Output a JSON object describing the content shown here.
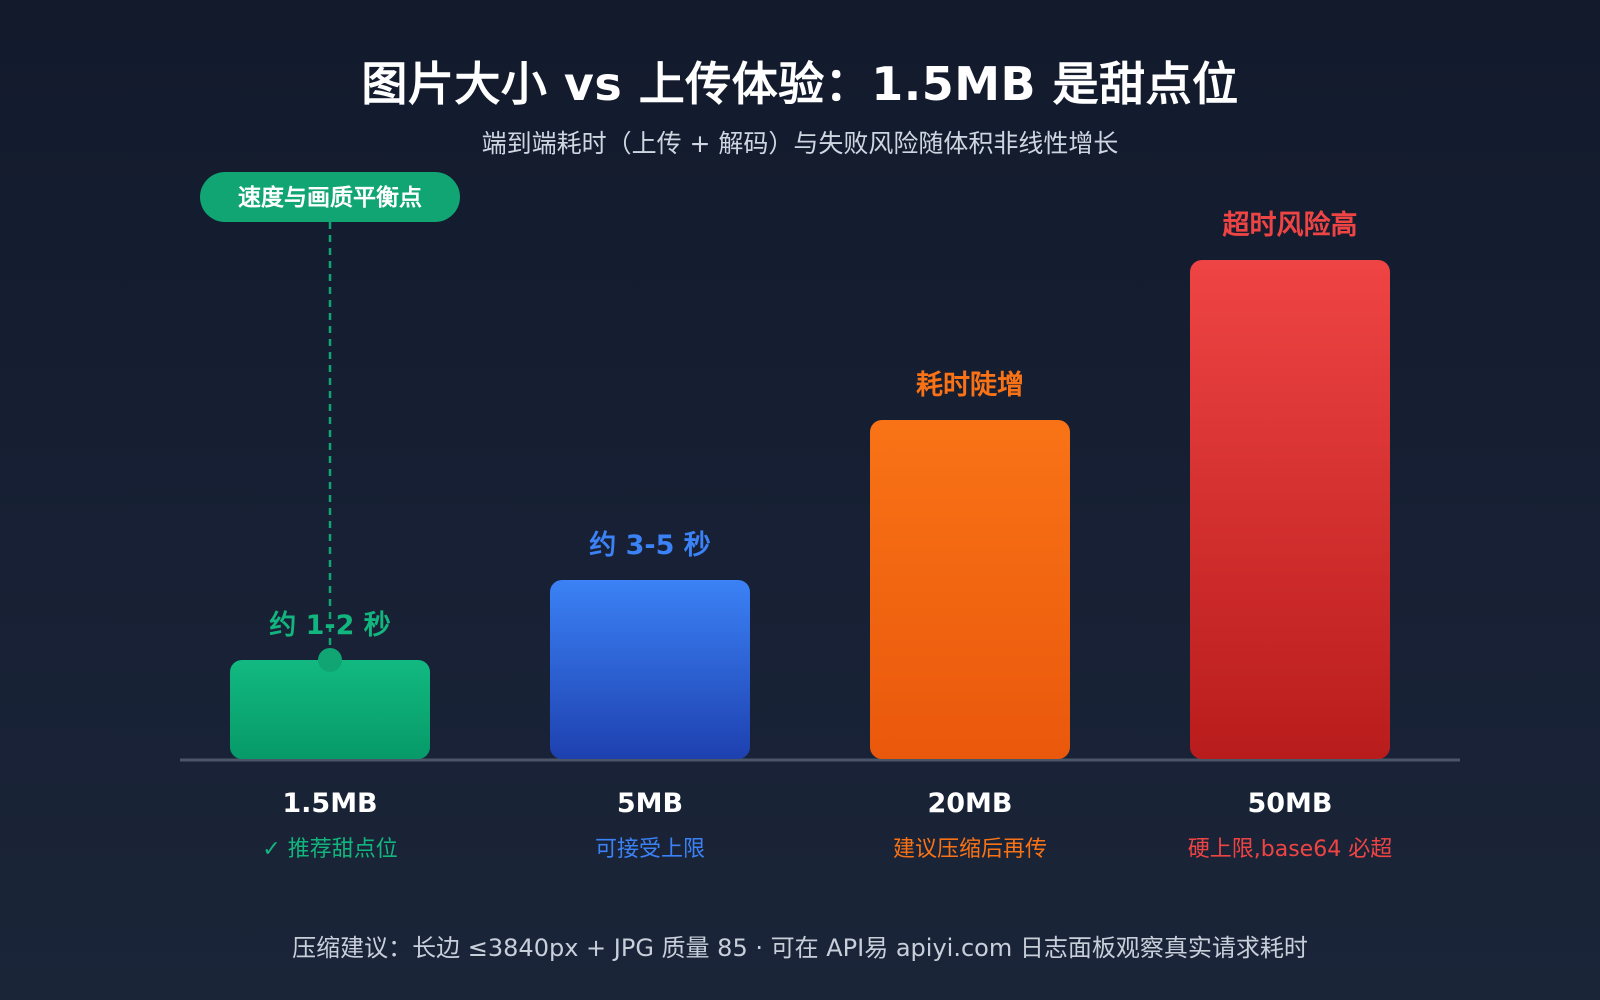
{
  "title": "图片大小 vs 上传体验：1.5MB 是甜点位",
  "subtitle": "端到端耗时（上传 + 解码）与失败风险随体积非线性增长",
  "footer": "压缩建议：长边 ≤3840px + JPG 质量 85 · 可在 API易 apiyi.com 日志面板观察真实请求耗时",
  "callout": {
    "label": "速度与画质平衡点",
    "color": "#10a572"
  },
  "chart_data": {
    "type": "bar",
    "title": "图片大小 vs 上传体验：1.5MB 是甜点位",
    "subtitle": "端到端耗时（上传 + 解码）与失败风险随体积非线性增长",
    "categories": [
      "1.5MB",
      "5MB",
      "20MB",
      "50MB"
    ],
    "values": [
      1,
      1.8,
      3.4,
      5
    ],
    "value_scale": "relative (no printed axis)",
    "ylim": [
      0,
      5
    ],
    "grid": false,
    "legend": "none",
    "bar_labels": [
      "约 1-2 秒",
      "约 3-5 秒",
      "耗时陡增",
      "超时风险高"
    ],
    "notes": [
      "✓ 推荐甜点位",
      "可接受上限",
      "建议压缩后再传",
      "硬上限,base64 必超"
    ],
    "colors": [
      {
        "top": "#12b981",
        "bottom": "#079a69",
        "label": "#12b57d"
      },
      {
        "top": "#3b82f6",
        "bottom": "#1e40af",
        "label": "#3b82f6"
      },
      {
        "top": "#f97316",
        "bottom": "#ea580c",
        "label": "#f97316"
      },
      {
        "top": "#ef4444",
        "bottom": "#b91c1c",
        "label": "#ef4444"
      }
    ]
  }
}
